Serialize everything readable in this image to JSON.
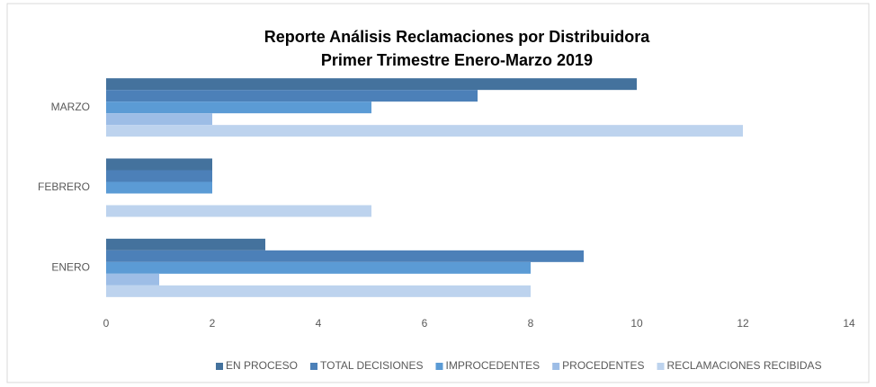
{
  "chart_data": {
    "type": "hbar",
    "title": "Reporte Análisis Reclamaciones por Distribuidora",
    "subtitle": "Primer Trimestre Enero-Marzo 2019",
    "categories": [
      "ENERO",
      "FEBRERO",
      "MARZO"
    ],
    "series": [
      {
        "name": "EN PROCESO",
        "color": "#44729d",
        "values": [
          3,
          2,
          10
        ]
      },
      {
        "name": "TOTAL DECISIONES",
        "color": "#4c80b8",
        "values": [
          9,
          2,
          7
        ]
      },
      {
        "name": "IMPROCEDENTES",
        "color": "#5b9bd5",
        "values": [
          8,
          2,
          5
        ]
      },
      {
        "name": "PROCEDENTES",
        "color": "#9dbde6",
        "values": [
          1,
          0,
          2
        ]
      },
      {
        "name": "RECLAMACIONES RECIBIDAS",
        "color": "#bdd3ee",
        "values": [
          8,
          5,
          12
        ]
      }
    ],
    "xlim": [
      0,
      14
    ],
    "xticks": [
      0,
      2,
      4,
      6,
      8,
      10,
      12,
      14
    ],
    "legend": "bottom"
  }
}
